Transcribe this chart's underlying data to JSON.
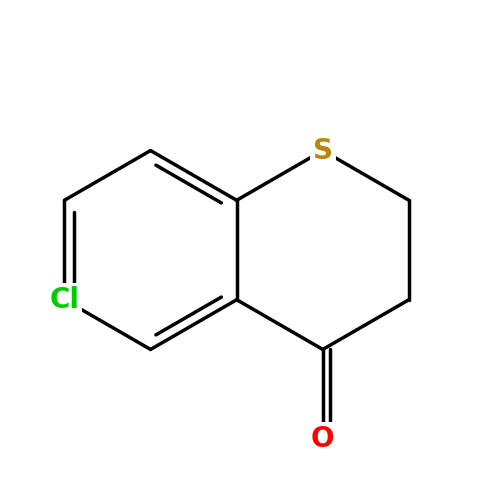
{
  "background_color": "#ffffff",
  "atom_S": {
    "label": "S",
    "color": "#b8860b",
    "fontsize": 20,
    "fontweight": "bold"
  },
  "atom_O": {
    "label": "O",
    "color": "#ff0000",
    "fontsize": 20,
    "fontweight": "bold"
  },
  "atom_Cl": {
    "label": "Cl",
    "color": "#00cc00",
    "fontsize": 20,
    "fontweight": "bold"
  },
  "bond_color": "#000000",
  "bond_width": 2.5,
  "figsize": [
    5.0,
    5.0
  ],
  "dpi": 100,
  "xlim": [
    -0.5,
    4.5
  ],
  "ylim": [
    -1.8,
    2.8
  ]
}
